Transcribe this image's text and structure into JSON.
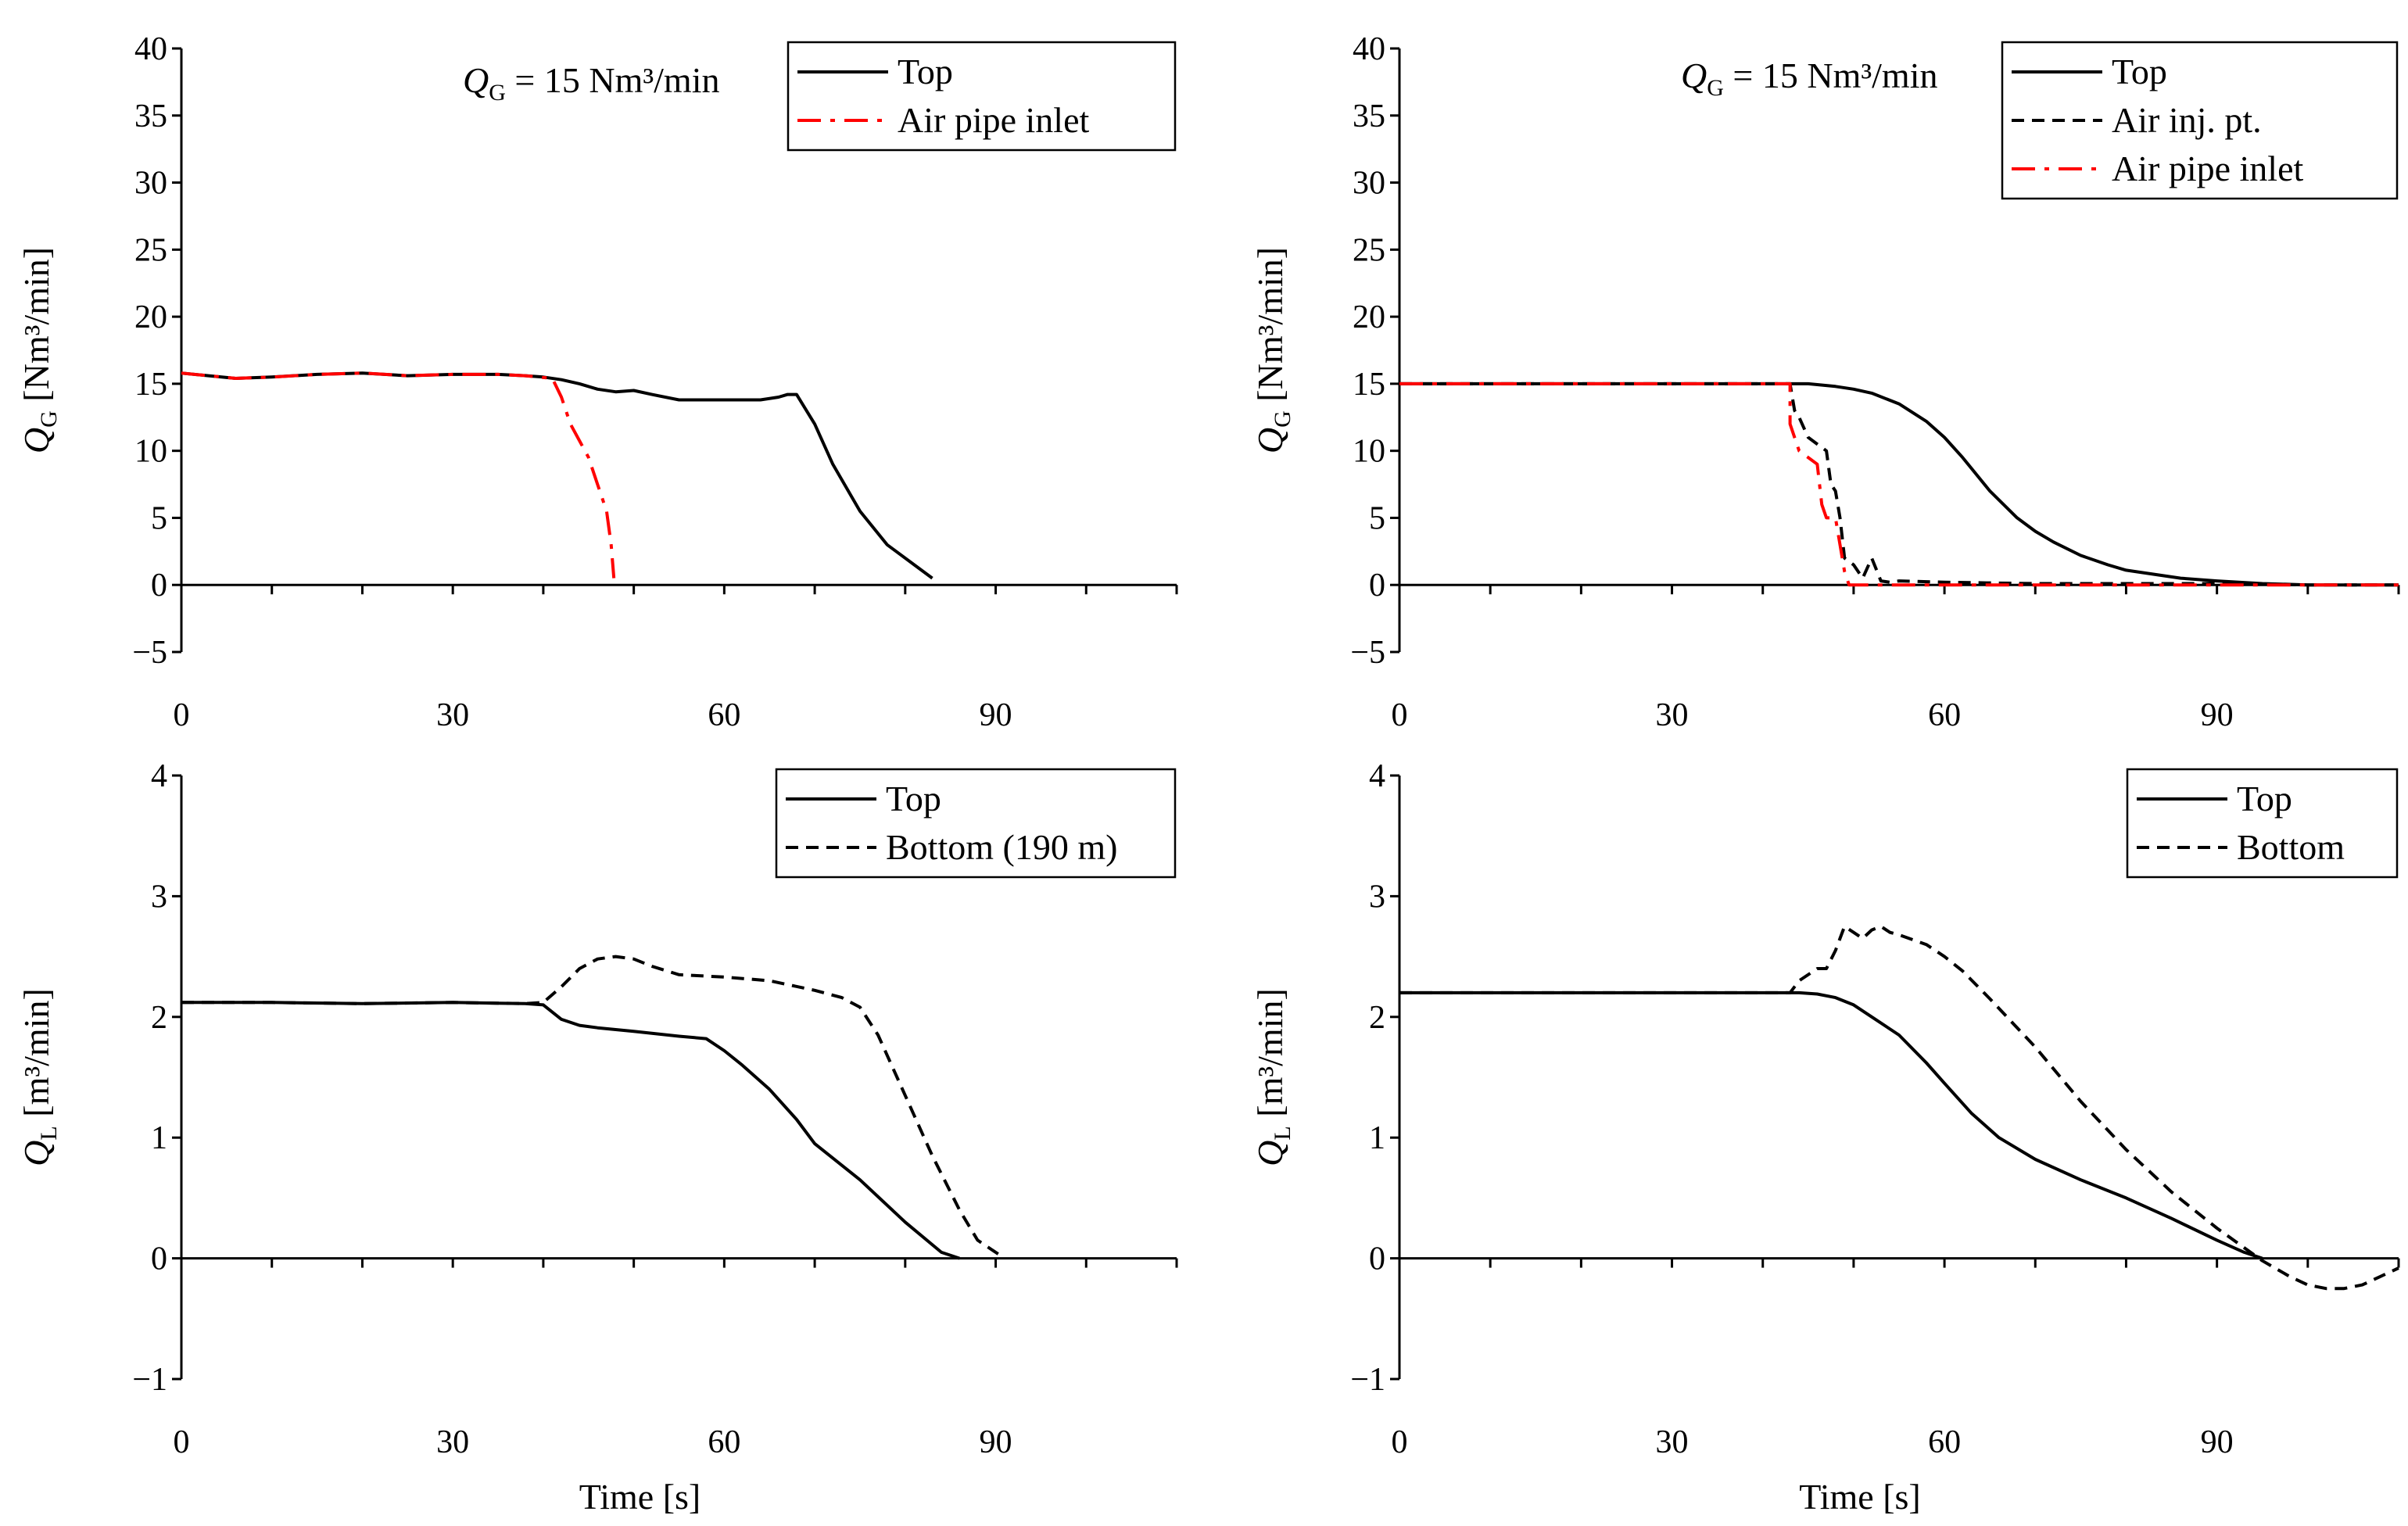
{
  "chart_data": [
    {
      "type": "line",
      "panel": "top-left",
      "title": "",
      "xlabel": "",
      "ylabel": "Q_G [Nm³/min]",
      "ylabel_symbol": "Q",
      "ylabel_sub": "G",
      "ylabel_unit": "[Nm³/min]",
      "xlim": [
        0,
        110
      ],
      "ylim": [
        -5,
        40
      ],
      "xticks": [
        0,
        30,
        60,
        90
      ],
      "yticks": [
        -5,
        0,
        5,
        10,
        15,
        20,
        25,
        30,
        35,
        40
      ],
      "annotation": {
        "symbol": "Q",
        "sub": "G",
        "rest": " = 15 Nm³/min"
      },
      "legend_position": "top-right",
      "series": [
        {
          "name": "Top",
          "color": "#000000",
          "dash": "solid",
          "x": [
            0,
            3,
            6,
            10,
            15,
            20,
            25,
            30,
            35,
            38,
            40,
            42,
            44,
            46,
            48,
            50,
            52,
            55,
            60,
            64,
            66,
            67,
            68,
            70,
            72,
            75,
            78,
            81,
            83
          ],
          "y": [
            15.8,
            15.6,
            15.4,
            15.5,
            15.7,
            15.8,
            15.6,
            15.7,
            15.7,
            15.6,
            15.5,
            15.3,
            15.0,
            14.6,
            14.4,
            14.5,
            14.2,
            13.8,
            13.8,
            13.8,
            14.0,
            14.2,
            14.2,
            12.0,
            9.0,
            5.5,
            3.0,
            1.5,
            0.5
          ]
        },
        {
          "name": "Air pipe inlet",
          "color": "#ff0000",
          "dash": "dashdot",
          "x": [
            0,
            3,
            6,
            10,
            15,
            20,
            25,
            30,
            35,
            38,
            41,
            42,
            43,
            45,
            46,
            47,
            47.5,
            47.8
          ],
          "y": [
            15.8,
            15.6,
            15.4,
            15.5,
            15.7,
            15.8,
            15.6,
            15.7,
            15.7,
            15.6,
            15.4,
            14.0,
            12.0,
            9.5,
            7.5,
            5.5,
            3.0,
            0.5
          ]
        }
      ]
    },
    {
      "type": "line",
      "panel": "top-right",
      "title": "",
      "xlabel": "",
      "ylabel": "Q_G [Nm³/min]",
      "ylabel_symbol": "Q",
      "ylabel_sub": "G",
      "ylabel_unit": "[Nm³/min]",
      "xlim": [
        0,
        110
      ],
      "ylim": [
        -5,
        40
      ],
      "xticks": [
        0,
        30,
        60,
        90
      ],
      "yticks": [
        -5,
        0,
        5,
        10,
        15,
        20,
        25,
        30,
        35,
        40
      ],
      "annotation": {
        "symbol": "Q",
        "sub": "G",
        "rest": " = 15 Nm³/min"
      },
      "legend_position": "top-right",
      "series": [
        {
          "name": "Top",
          "color": "#000000",
          "dash": "solid",
          "x": [
            0,
            20,
            40,
            45,
            48,
            50,
            52,
            55,
            58,
            60,
            62,
            65,
            68,
            70,
            72,
            75,
            78,
            80,
            83,
            86,
            90,
            95,
            100,
            105,
            110
          ],
          "y": [
            15,
            15,
            15,
            15,
            14.8,
            14.6,
            14.3,
            13.5,
            12.2,
            11.0,
            9.5,
            7.0,
            5.0,
            4.0,
            3.2,
            2.2,
            1.5,
            1.1,
            0.8,
            0.5,
            0.3,
            0.1,
            0.0,
            0.0,
            0.0
          ]
        },
        {
          "name": "Air inj. pt.",
          "color": "#000000",
          "dash": "dashed",
          "x": [
            0,
            20,
            40,
            43,
            43.5,
            44,
            45,
            46,
            47,
            47.5,
            48,
            48.5,
            49,
            50,
            51,
            52,
            53,
            54,
            55,
            60,
            70,
            80,
            90,
            100,
            110
          ],
          "y": [
            15,
            15,
            15,
            15,
            13,
            12.5,
            11,
            10.5,
            10,
            7.5,
            7,
            5,
            2,
            1.5,
            0.5,
            2,
            0.3,
            0.2,
            0.3,
            0.2,
            0.1,
            0.1,
            0.1,
            0.0,
            0.0
          ]
        },
        {
          "name": "Air pipe inlet",
          "color": "#ff0000",
          "dash": "dashdot",
          "x": [
            0,
            20,
            40,
            43,
            43,
            44,
            45,
            46,
            46.5,
            47,
            47.5,
            48,
            48.5,
            49,
            49.5,
            55,
            60,
            70,
            80,
            90,
            100,
            110
          ],
          "y": [
            15,
            15,
            15,
            15,
            12,
            10,
            9.5,
            9,
            6,
            5,
            5,
            5,
            3,
            1,
            0,
            0,
            0,
            0,
            0,
            0,
            0,
            0
          ]
        }
      ]
    },
    {
      "type": "line",
      "panel": "bottom-left",
      "title": "",
      "xlabel": "Time [s]",
      "ylabel": "Q_L [m³/min]",
      "ylabel_symbol": "Q",
      "ylabel_sub": "L",
      "ylabel_unit": "[m³/min]",
      "xlim": [
        0,
        110
      ],
      "ylim": [
        -1,
        4
      ],
      "xticks": [
        0,
        30,
        60,
        90
      ],
      "yticks": [
        -1,
        0,
        1,
        2,
        3,
        4
      ],
      "legend_position": "top-right",
      "series": [
        {
          "name": "Top",
          "color": "#000000",
          "dash": "solid",
          "x": [
            0,
            10,
            20,
            30,
            38,
            40,
            42,
            44,
            46,
            50,
            55,
            58,
            60,
            62,
            65,
            68,
            70,
            75,
            80,
            84,
            86
          ],
          "y": [
            2.12,
            2.12,
            2.11,
            2.12,
            2.11,
            2.1,
            1.98,
            1.93,
            1.91,
            1.88,
            1.84,
            1.82,
            1.72,
            1.6,
            1.4,
            1.15,
            0.95,
            0.65,
            0.3,
            0.05,
            0.0
          ]
        },
        {
          "name": "Bottom (190 m)",
          "color": "#000000",
          "dash": "dashed",
          "x": [
            0,
            10,
            20,
            30,
            38,
            40,
            42,
            44,
            46,
            48,
            50,
            52,
            55,
            60,
            65,
            70,
            73,
            75,
            77,
            80,
            83,
            86,
            88,
            90,
            91
          ],
          "y": [
            2.12,
            2.12,
            2.11,
            2.12,
            2.11,
            2.12,
            2.25,
            2.4,
            2.48,
            2.5,
            2.48,
            2.42,
            2.35,
            2.33,
            2.3,
            2.22,
            2.16,
            2.08,
            1.85,
            1.35,
            0.85,
            0.4,
            0.15,
            0.05,
            0.0
          ]
        }
      ]
    },
    {
      "type": "line",
      "panel": "bottom-right",
      "title": "",
      "xlabel": "Time [s]",
      "ylabel": "Q_L [m³/min]",
      "ylabel_symbol": "Q",
      "ylabel_sub": "L",
      "ylabel_unit": "[m³/min]",
      "xlim": [
        0,
        110
      ],
      "ylim": [
        -1,
        4
      ],
      "xticks": [
        0,
        30,
        60,
        90
      ],
      "yticks": [
        -1,
        0,
        1,
        2,
        3,
        4
      ],
      "legend_position": "top-right",
      "series": [
        {
          "name": "Top",
          "color": "#000000",
          "dash": "solid",
          "x": [
            0,
            20,
            40,
            44,
            46,
            48,
            50,
            52,
            55,
            58,
            60,
            63,
            66,
            70,
            75,
            80,
            85,
            90,
            93,
            95
          ],
          "y": [
            2.2,
            2.2,
            2.2,
            2.2,
            2.19,
            2.16,
            2.1,
            2.0,
            1.85,
            1.62,
            1.45,
            1.2,
            1.0,
            0.82,
            0.65,
            0.5,
            0.33,
            0.15,
            0.05,
            0.0
          ]
        },
        {
          "name": "Bottom",
          "color": "#000000",
          "dash": "dashed",
          "x": [
            0,
            20,
            40,
            43,
            44,
            46,
            47,
            48,
            49,
            50,
            51,
            52,
            53,
            54,
            55,
            58,
            60,
            62,
            65,
            70,
            75,
            80,
            85,
            90,
            95,
            98,
            100,
            102,
            104,
            106,
            108,
            110
          ],
          "y": [
            2.2,
            2.2,
            2.2,
            2.2,
            2.3,
            2.4,
            2.4,
            2.55,
            2.75,
            2.7,
            2.65,
            2.72,
            2.75,
            2.7,
            2.68,
            2.6,
            2.5,
            2.38,
            2.15,
            1.75,
            1.3,
            0.9,
            0.55,
            0.25,
            -0.02,
            -0.15,
            -0.22,
            -0.25,
            -0.25,
            -0.22,
            -0.15,
            -0.08
          ]
        }
      ]
    }
  ]
}
